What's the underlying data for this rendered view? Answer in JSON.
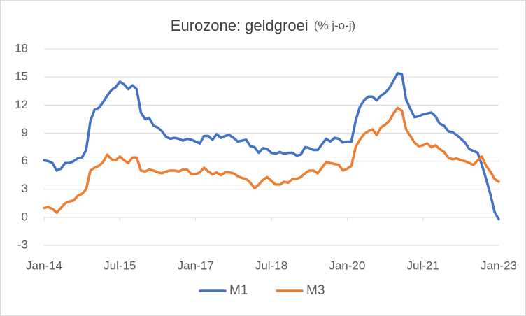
{
  "chart_data": {
    "type": "line",
    "title": "Eurozone: geldgroei",
    "subtitle": "(% j-o-j)",
    "categories": [
      "Jan-14",
      null,
      null,
      null,
      null,
      null,
      null,
      null,
      null,
      null,
      null,
      null,
      null,
      null,
      null,
      null,
      null,
      null,
      "Jul-15",
      null,
      null,
      null,
      null,
      null,
      null,
      null,
      null,
      null,
      null,
      null,
      null,
      null,
      null,
      null,
      null,
      null,
      "Jan-17",
      null,
      null,
      null,
      null,
      null,
      null,
      null,
      null,
      null,
      null,
      null,
      null,
      null,
      null,
      null,
      null,
      null,
      "Jul-18",
      null,
      null,
      null,
      null,
      null,
      null,
      null,
      null,
      null,
      null,
      null,
      null,
      null,
      null,
      null,
      null,
      null,
      "Jan-20",
      null,
      null,
      null,
      null,
      null,
      null,
      null,
      null,
      null,
      null,
      null,
      null,
      null,
      null,
      null,
      null,
      null,
      "Jul-21",
      null,
      null,
      null,
      null,
      null,
      null,
      null,
      null,
      null,
      null,
      null,
      null,
      null,
      null,
      null,
      null,
      null,
      "Jan-23"
    ],
    "series": [
      {
        "name": "M1",
        "color": "#4472c4",
        "values": [
          6.1,
          6.0,
          5.8,
          5.0,
          5.2,
          5.8,
          5.8,
          6.0,
          6.3,
          6.4,
          7.2,
          10.3,
          11.5,
          11.7,
          12.3,
          13.0,
          13.6,
          13.9,
          14.5,
          14.2,
          13.7,
          14.1,
          13.7,
          11.2,
          10.5,
          10.6,
          9.8,
          9.6,
          9.2,
          8.6,
          8.4,
          8.5,
          8.4,
          8.2,
          8.4,
          8.3,
          8.1,
          7.9,
          8.7,
          8.7,
          8.3,
          8.9,
          8.5,
          8.7,
          8.8,
          8.5,
          8.1,
          8.2,
          8.3,
          7.6,
          7.5,
          6.9,
          7.4,
          7.3,
          6.9,
          6.8,
          7.0,
          6.8,
          6.9,
          6.9,
          6.6,
          6.7,
          7.5,
          7.4,
          7.2,
          7.2,
          7.8,
          8.4,
          8.1,
          8.5,
          8.4,
          8.0,
          8.1,
          8.1,
          10.3,
          11.8,
          12.5,
          12.9,
          12.9,
          12.5,
          13.0,
          13.3,
          13.8,
          14.6,
          15.4,
          15.3,
          12.6,
          11.6,
          10.7,
          10.8,
          11.0,
          11.1,
          11.2,
          10.8,
          10.0,
          9.8,
          9.2,
          9.1,
          8.8,
          8.4,
          8.0,
          7.3,
          7.1,
          6.9,
          5.6,
          4.1,
          2.5,
          0.6,
          -0.2
        ]
      },
      {
        "name": "M3",
        "color": "#ed7d31",
        "values": [
          1.0,
          1.1,
          0.9,
          0.5,
          1.0,
          1.5,
          1.7,
          1.8,
          2.3,
          2.5,
          3.0,
          5.0,
          5.3,
          5.5,
          5.9,
          6.7,
          6.2,
          6.1,
          6.5,
          6.1,
          5.8,
          6.4,
          6.4,
          5.0,
          4.9,
          5.1,
          5.0,
          4.8,
          4.7,
          4.9,
          5.0,
          5.0,
          4.9,
          5.1,
          5.1,
          4.6,
          4.6,
          4.8,
          5.3,
          4.9,
          4.6,
          4.8,
          4.5,
          4.8,
          4.8,
          4.7,
          4.4,
          4.2,
          4.1,
          3.7,
          3.1,
          3.5,
          4.0,
          4.3,
          3.9,
          3.5,
          3.5,
          3.8,
          3.7,
          4.1,
          4.1,
          4.3,
          4.7,
          5.0,
          5.0,
          4.7,
          5.3,
          5.9,
          5.8,
          5.7,
          5.6,
          5.0,
          5.2,
          5.5,
          7.5,
          8.3,
          8.9,
          9.2,
          9.4,
          8.8,
          9.6,
          9.9,
          10.3,
          11.1,
          11.7,
          11.4,
          9.4,
          8.7,
          8.0,
          7.6,
          7.7,
          7.9,
          7.5,
          7.7,
          7.3,
          7.0,
          6.4,
          6.2,
          6.3,
          6.1,
          6.0,
          5.8,
          5.6,
          6.1,
          6.5,
          5.5,
          4.9,
          4.1,
          3.8
        ]
      }
    ],
    "ylim": [
      -3,
      18
    ],
    "yticks": [
      -3,
      0,
      3,
      6,
      9,
      12,
      15,
      18
    ],
    "grid": true,
    "legend": "bottom"
  }
}
